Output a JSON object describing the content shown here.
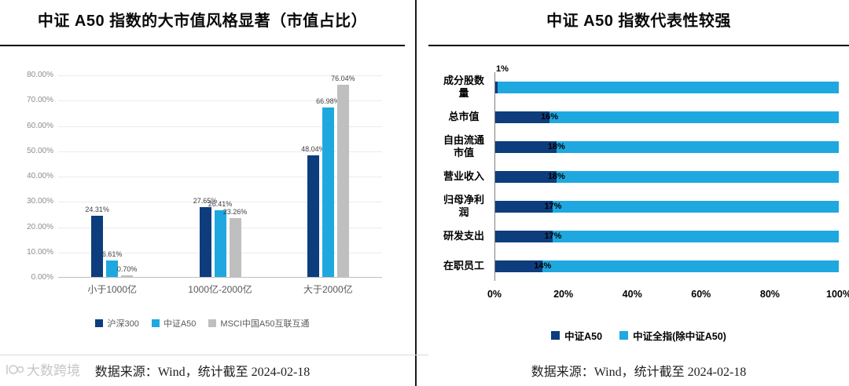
{
  "colors": {
    "navy": "#0D3D7C",
    "cyan": "#1FA8E0",
    "gray": "#BFBFBF"
  },
  "left_panel": {
    "title": "中证 A50 指数的大市值风格显著（市值占比）",
    "source": "数据来源：Wind，统计截至 2024-02-18"
  },
  "right_panel": {
    "title": "中证 A50 指数代表性较强",
    "source": "数据来源：Wind，统计截至 2024-02-18"
  },
  "watermark": {
    "text": "大数跨境"
  },
  "chart_data": [
    {
      "type": "bar",
      "title": "中证 A50 指数的大市值风格显著（市值占比）",
      "categories": [
        "小于1000亿",
        "1000亿-2000亿",
        "大于2000亿"
      ],
      "series": [
        {
          "name": "沪深300",
          "color": "navy",
          "values": [
            24.31,
            27.65,
            48.04
          ]
        },
        {
          "name": "中证A50",
          "color": "cyan",
          "values": [
            6.61,
            26.41,
            66.98
          ]
        },
        {
          "name": "MSCI中国A50互联互通",
          "color": "gray",
          "values": [
            0.7,
            23.26,
            76.04
          ]
        }
      ],
      "ylim": [
        0,
        80
      ],
      "y_ticks": [
        "0.00%",
        "10.00%",
        "20.00%",
        "30.00%",
        "40.00%",
        "50.00%",
        "60.00%",
        "70.00%",
        "80.00%"
      ],
      "grid": true,
      "legend_position": "bottom"
    },
    {
      "type": "bar-horizontal-stacked",
      "title": "中证 A50 指数代表性较强",
      "categories": [
        "成分股数量",
        "总市值",
        "自由流通市值",
        "营业收入",
        "归母净利润",
        "研发支出",
        "在职员工"
      ],
      "series": [
        {
          "name": "中证A50",
          "color": "navy",
          "values": [
            1,
            16,
            18,
            18,
            17,
            17,
            14
          ]
        },
        {
          "name": "中证全指(除中证A50)",
          "color": "cyan",
          "values": [
            99,
            84,
            82,
            82,
            83,
            83,
            86
          ]
        }
      ],
      "data_labels": [
        "1%",
        "16%",
        "18%",
        "18%",
        "17%",
        "17%",
        "14%"
      ],
      "xlim": [
        0,
        100
      ],
      "x_ticks": [
        "0%",
        "20%",
        "40%",
        "60%",
        "80%",
        "100%"
      ],
      "legend_position": "bottom"
    }
  ]
}
